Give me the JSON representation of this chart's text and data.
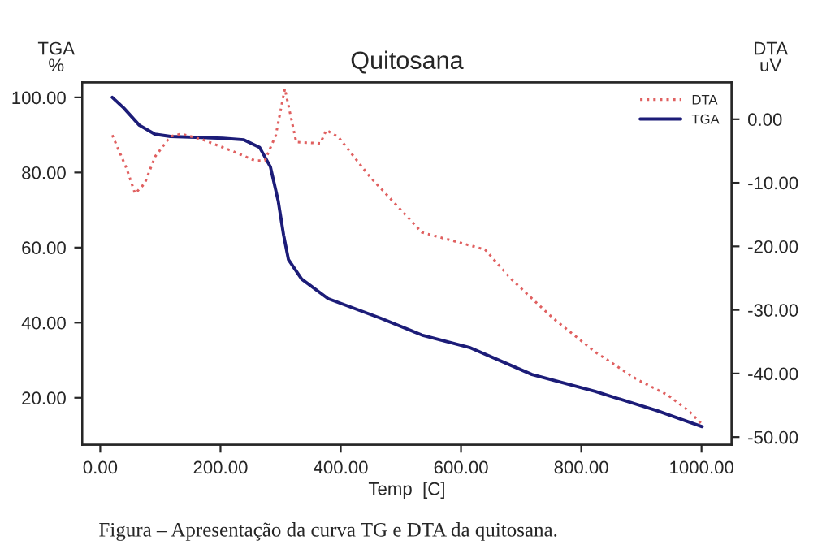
{
  "chart_data": {
    "type": "line",
    "title": "Quitosana",
    "xlabel": "Temp  [C]",
    "ylabel": "TGA\n%",
    "y2label": "DTA\nuV",
    "annotations": [
      "Figura – Apresentação da curva TG e DTA da quitosana."
    ],
    "series": [
      {
        "name": "DTA",
        "color": "#e06060",
        "axis": "y2",
        "line_style": "dotted",
        "x": [
          20,
          44,
          58,
          74,
          91,
          117,
          135,
          170,
          222,
          257,
          274,
          292,
          307,
          326,
          366,
          376,
          396,
          448,
          535,
          640,
          683,
          753,
          823,
          892,
          944,
          979,
          1001
        ],
        "values": [
          -2.5,
          -7.8,
          -11.7,
          -10.1,
          -5.9,
          -2.7,
          -2.3,
          -3.2,
          -5.1,
          -6.5,
          -6.5,
          -2.5,
          4.8,
          -3.6,
          -3.8,
          -1.7,
          -2.8,
          -9.0,
          -17.8,
          -20.5,
          -25.1,
          -31.3,
          -36.6,
          -40.9,
          -43.4,
          -45.9,
          -48.0
        ]
      },
      {
        "name": "TGA",
        "color": "#1c1c78",
        "line_style": "solid",
        "x": [
          20,
          39,
          65,
          91,
          117,
          204,
          239,
          265,
          283,
          296,
          305,
          313,
          335,
          379,
          466,
          535,
          614,
          718,
          823,
          927,
          1001
        ],
        "values": [
          100,
          97.2,
          92.6,
          90.2,
          89.6,
          89.1,
          88.7,
          86.7,
          81.5,
          72.4,
          63.3,
          56.8,
          51.6,
          46.4,
          41.2,
          36.7,
          33.4,
          26.2,
          21.7,
          16.5,
          12.3
        ]
      }
    ],
    "xlim": [
      -30,
      1050
    ],
    "xticks": [
      {
        "value": 0,
        "label": "0.00"
      },
      {
        "value": 200,
        "label": "200.00"
      },
      {
        "value": 400,
        "label": "400.00"
      },
      {
        "value": 600,
        "label": "600.00"
      },
      {
        "value": 800,
        "label": "800.00"
      },
      {
        "value": 1000,
        "label": "1000.00"
      }
    ],
    "ylim": [
      7.5,
      104
    ],
    "yticks": [
      {
        "value": 20,
        "label": "20.00"
      },
      {
        "value": 40,
        "label": "40.00"
      },
      {
        "value": 60,
        "label": "60.00"
      },
      {
        "value": 80,
        "label": "80.00"
      },
      {
        "value": 100,
        "label": "100.00"
      }
    ],
    "y2lim": [
      -51.2,
      5.8
    ],
    "y2ticks": [
      {
        "value": -50,
        "label": "-50.00"
      },
      {
        "value": -40,
        "label": "-40.00"
      },
      {
        "value": -30,
        "label": "-30.00"
      },
      {
        "value": -20,
        "label": "-20.00"
      },
      {
        "value": -10,
        "label": "-10.00"
      },
      {
        "value": 0,
        "label": "0.00"
      }
    ],
    "legend": "top right",
    "grid": false
  }
}
